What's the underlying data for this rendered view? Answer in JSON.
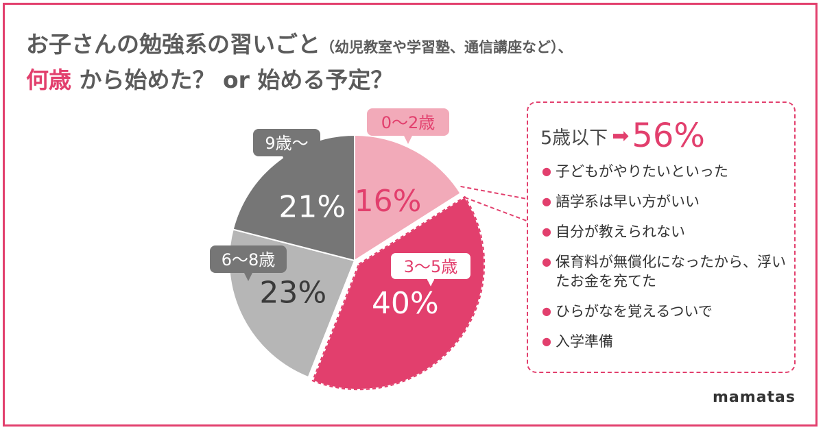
{
  "title": {
    "line1_main": "お子さんの勉強系の習いごと",
    "line1_sub": "（幼児教室や学習塾、通信講座など）、",
    "line2_accent": "何歳",
    "line2_rest": "から始めた？ or 始める予定？"
  },
  "chart_data": {
    "type": "pie",
    "slices": [
      {
        "label": "0〜2歳",
        "value": 16,
        "display": "16%",
        "color": "#f2aab9"
      },
      {
        "label": "3〜5歳",
        "value": 40,
        "display": "40%",
        "color": "#e23f6d"
      },
      {
        "label": "6〜8歳",
        "value": 23,
        "display": "23%",
        "color": "#b6b6b6"
      },
      {
        "label": "9歳〜",
        "value": 21,
        "display": "21%",
        "color": "#767676"
      }
    ]
  },
  "panel": {
    "headline_label": "5歳以下",
    "headline_value": "56%",
    "reasons": [
      "子どもがやりたいといった",
      "語学系は早い方がいい",
      "自分が教えられない",
      "保育料が無償化になったから、浮いたお金を充てた",
      "ひらがなを覚えるついで",
      "入学準備"
    ]
  },
  "brand": "mamatas",
  "colors": {
    "accent": "#e23f6d",
    "pink_light": "#f2aab9",
    "gray_dark": "#767676",
    "gray_light": "#b6b6b6"
  }
}
